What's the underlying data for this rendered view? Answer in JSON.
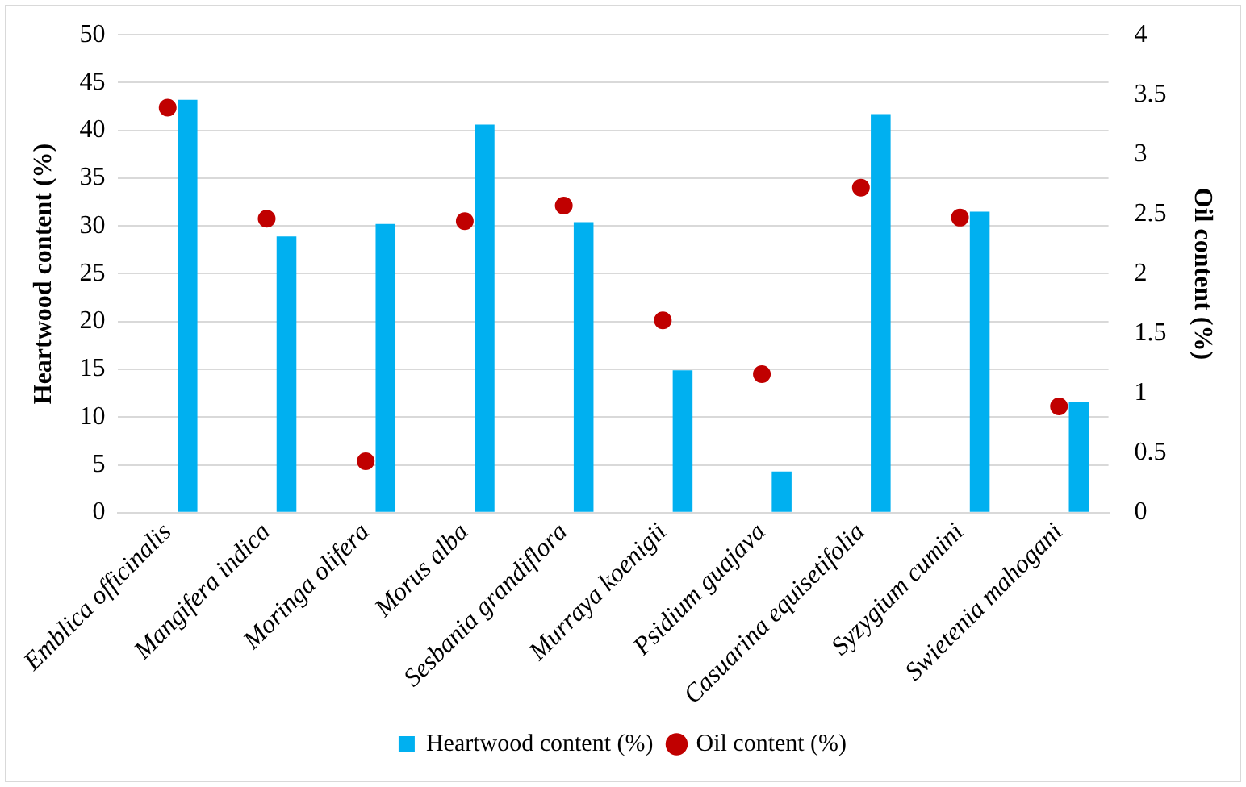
{
  "chart_data": {
    "type": "bar",
    "ylabel": "Heartwood content (%)",
    "y2label": "Oil content (%)",
    "categories": [
      "Emblica officinalis",
      "Mangifera indica",
      "Moringa olifera",
      "Morus alba",
      "Sesbania grandiflora",
      "Murraya koenigii",
      "Psidium guajava",
      "Casuarina equisetifolia",
      "Syzygium cumini",
      "Swietenia mahogani"
    ],
    "series": [
      {
        "name": "Heartwood content (%)",
        "color": "#00b0f0",
        "values": [
          43.2,
          28.9,
          30.2,
          40.6,
          30.4,
          14.9,
          4.3,
          41.7,
          31.5,
          11.6
        ]
      },
      {
        "name": "Oil content (%)",
        "type": "scatter",
        "axis": "y2",
        "color": "#c00000",
        "values": [
          3.39,
          2.46,
          0.43,
          2.44,
          2.57,
          1.61,
          1.16,
          2.72,
          2.47,
          0.89
        ]
      }
    ],
    "ylim": [
      0,
      50
    ],
    "yticks": [
      0,
      5,
      10,
      15,
      20,
      25,
      30,
      35,
      40,
      45,
      50
    ],
    "y2lim": [
      0,
      4
    ],
    "y2ticks": [
      0,
      0.5,
      1,
      1.5,
      2,
      2.5,
      3,
      3.5,
      4
    ],
    "grid": "y",
    "legend": "bottom",
    "marker": "circle"
  }
}
